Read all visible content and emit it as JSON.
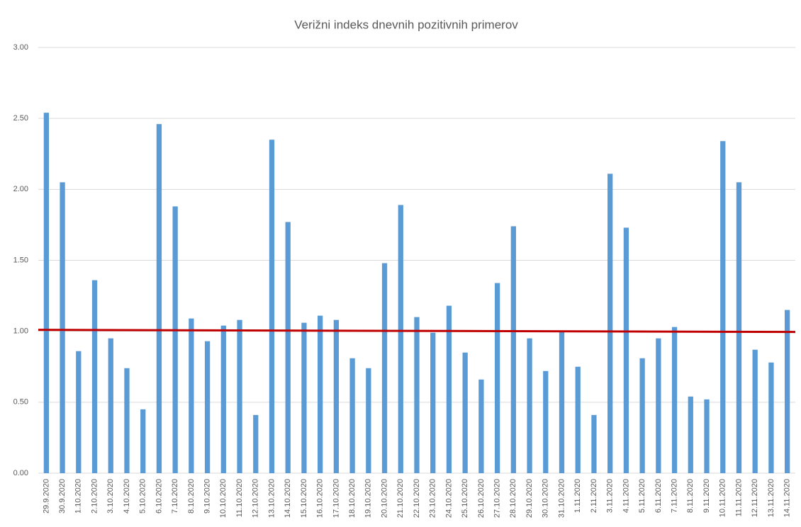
{
  "chart_data": {
    "type": "bar",
    "title": "Verižni indeks dnevnih pozitivnih primerov",
    "categories": [
      "29.9.2020",
      "30.9.2020",
      "1.10.2020",
      "2.10.2020",
      "3.10.2020",
      "4.10.2020",
      "5.10.2020",
      "6.10.2020",
      "7.10.2020",
      "8.10.2020",
      "9.10.2020",
      "10.10.2020",
      "11.10.2020",
      "12.10.2020",
      "13.10.2020",
      "14.10.2020",
      "15.10.2020",
      "16.10.2020",
      "17.10.2020",
      "18.10.2020",
      "19.10.2020",
      "20.10.2020",
      "21.10.2020",
      "22.10.2020",
      "23.10.2020",
      "24.10.2020",
      "25.10.2020",
      "26.10.2020",
      "27.10.2020",
      "28.10.2020",
      "29.10.2020",
      "30.10.2020",
      "31.10.2020",
      "1.11.2020",
      "2.11.2020",
      "3.11.2020",
      "4.11.2020",
      "5.11.2020",
      "6.11.2020",
      "7.11.2020",
      "8.11.2020",
      "9.11.2020",
      "10.11.2020",
      "11.11.2020",
      "12.11.2020",
      "13.11.2020",
      "14.11.2020"
    ],
    "values": [
      2.54,
      2.05,
      0.86,
      1.36,
      0.95,
      0.74,
      0.45,
      2.46,
      1.88,
      1.09,
      0.93,
      1.04,
      1.08,
      0.41,
      2.35,
      1.77,
      1.06,
      1.11,
      1.08,
      0.81,
      0.74,
      1.48,
      1.89,
      1.1,
      0.99,
      1.18,
      0.85,
      0.66,
      1.34,
      1.74,
      0.95,
      0.72,
      1.0,
      0.75,
      0.41,
      2.11,
      1.73,
      0.81,
      0.95,
      1.03,
      0.54,
      0.52,
      2.34,
      2.05,
      0.87,
      0.78,
      1.15
    ],
    "color": "#5b9bd5",
    "trendline": {
      "color": "#c00000",
      "values": [
        1.01,
        0.995
      ]
    },
    "ylim": [
      0,
      3
    ],
    "yticks": [
      {
        "value": 0,
        "label": "0.00"
      },
      {
        "value": 0.5,
        "label": "0.50"
      },
      {
        "value": 1,
        "label": "1.00"
      },
      {
        "value": 1.5,
        "label": "1.50"
      },
      {
        "value": 2,
        "label": "2.00"
      },
      {
        "value": 2.5,
        "label": "2.50"
      },
      {
        "value": 3,
        "label": "3.00"
      }
    ],
    "grid": true
  }
}
